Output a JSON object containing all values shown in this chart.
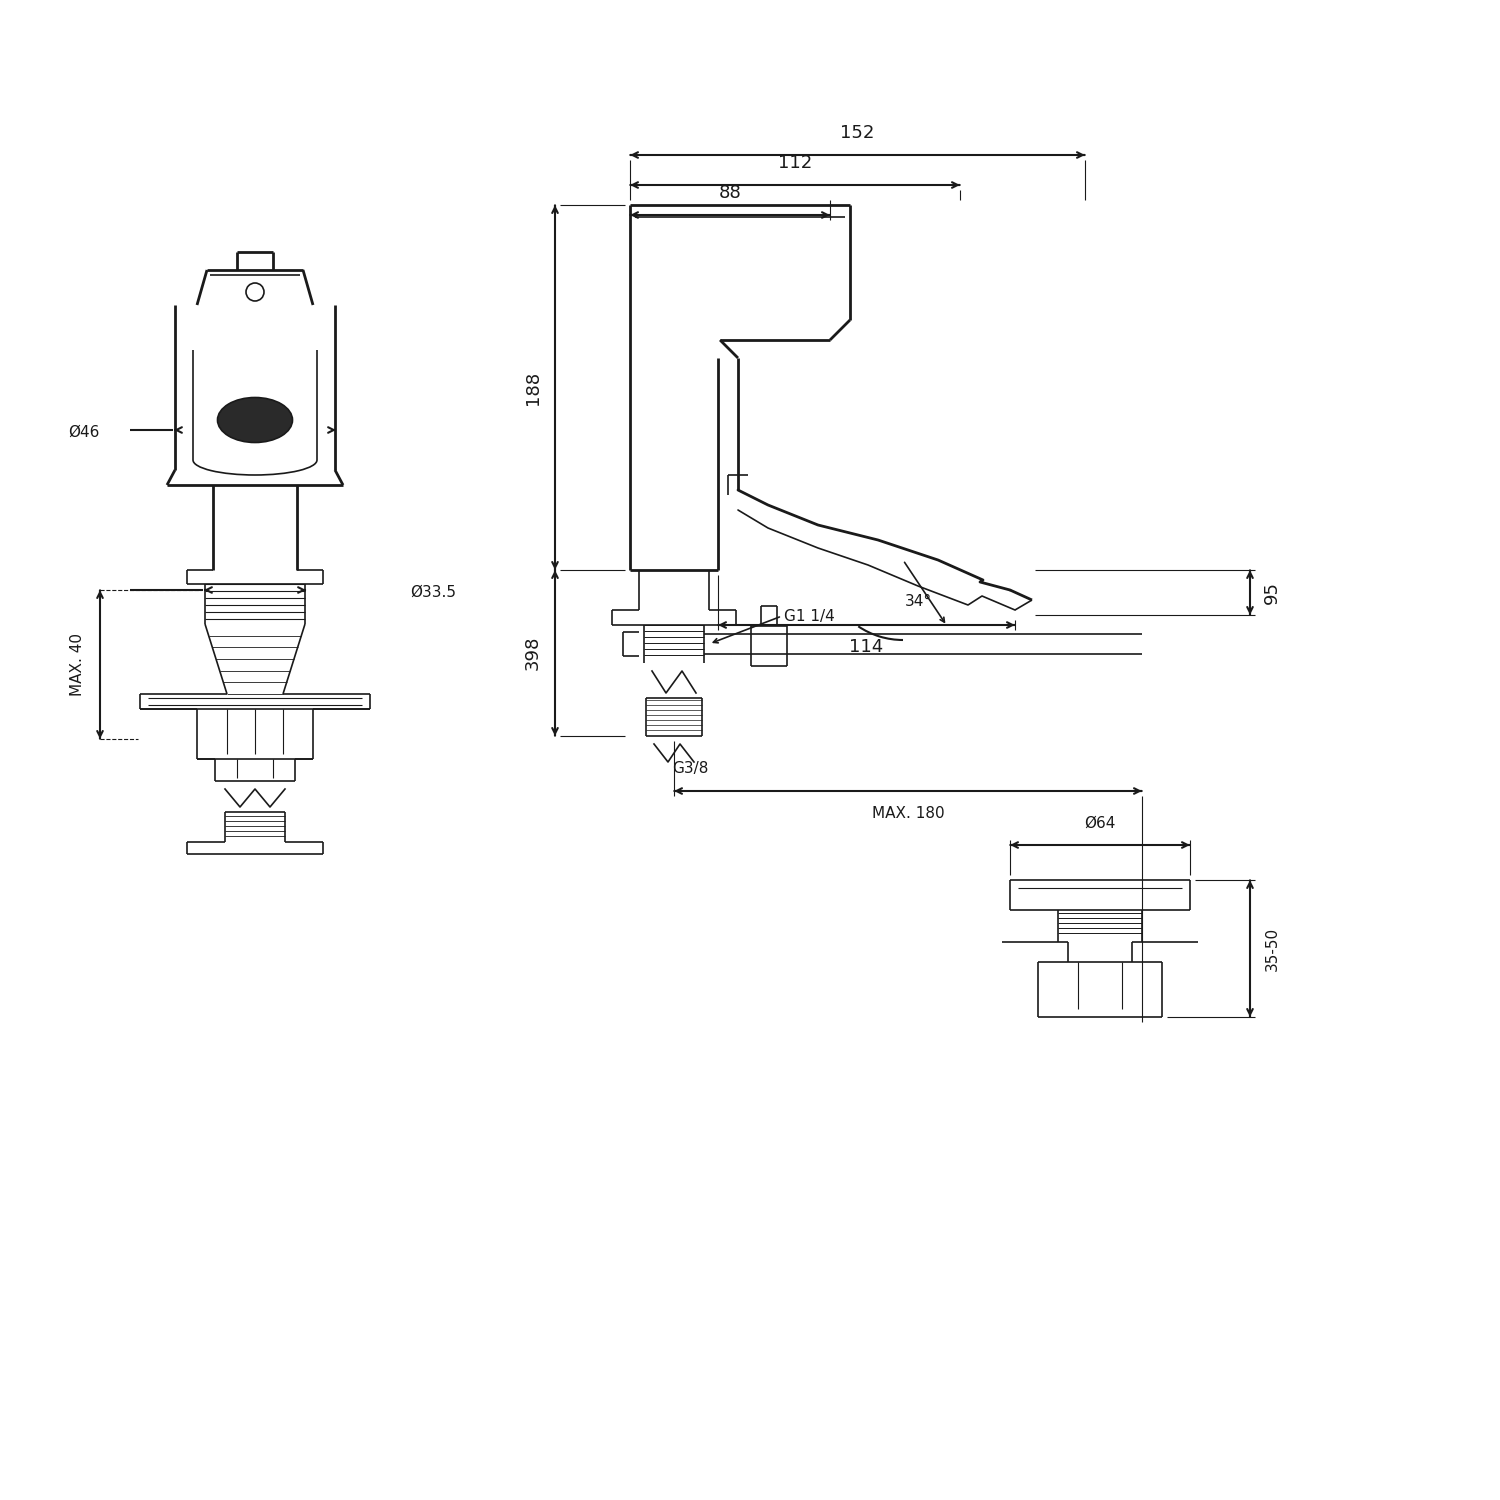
{
  "bg_color": "#ffffff",
  "line_color": "#1a1a1a",
  "fig_width": 15,
  "fig_height": 15,
  "dpi": 100,
  "annotations": {
    "dim_152": "152",
    "dim_112": "112",
    "dim_88": "88",
    "dim_188": "188",
    "dim_95": "95",
    "dim_114": "114",
    "dim_34": "34°",
    "dim_398": "398",
    "dim_g38": "G3/8",
    "dim_max180": "MAX. 180",
    "dim_g114": "G1 1/4",
    "dim_64": "Ø64",
    "dim_3550": "35-50",
    "dim_46": "Ø46",
    "dim_335": "Ø33.5",
    "dim_max40": "MAX. 40"
  }
}
